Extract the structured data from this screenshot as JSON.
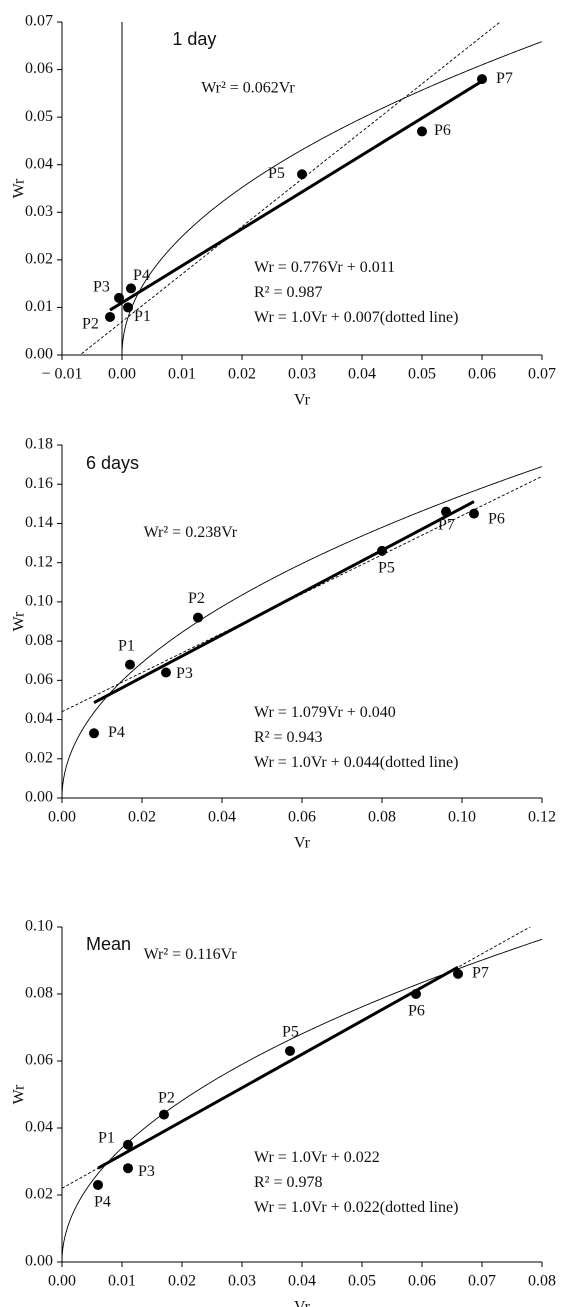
{
  "chart_data": [
    {
      "type": "scatter",
      "title": "1 day",
      "xlabel": "Vr",
      "ylabel": "Wr",
      "point_labels": [
        "P1",
        "P2",
        "P3",
        "P4",
        "P5",
        "P6",
        "P7"
      ],
      "x": [
        0.001,
        -0.002,
        -0.0005,
        0.0015,
        0.03,
        0.05,
        0.06
      ],
      "values": [
        0.01,
        0.008,
        0.012,
        0.014,
        0.038,
        0.047,
        0.058
      ],
      "xlim": [
        -0.01,
        0.07
      ],
      "ylim": [
        0,
        0.07
      ],
      "xticks": [
        {
          "value": -0.01,
          "label": "− 0.01"
        },
        {
          "value": 0,
          "label": "0.00"
        },
        0.01,
        0.02,
        0.03,
        0.04,
        0.05,
        0.06,
        0.07
      ],
      "yticks": [
        {
          "value": 0,
          "label": "0.00"
        },
        0.01,
        0.02,
        0.03,
        0.04,
        0.05,
        0.06,
        0.07
      ],
      "curve": {
        "coef": 0.062,
        "label": "Wr² = 0.062Vr"
      },
      "fit": {
        "slope": 0.776,
        "intercept": 0.011,
        "label": "Wr = 0.776Vr + 0.011"
      },
      "r2_label": "R² = 0.987",
      "reference": {
        "slope": 1.0,
        "intercept": 0.007,
        "label": "Wr = 1.0Vr + 0.007(dotted line)"
      }
    },
    {
      "type": "scatter",
      "title": "6 days",
      "xlabel": "Vr",
      "ylabel": "Wr",
      "point_labels": [
        "P1",
        "P2",
        "P3",
        "P4",
        "P5",
        "P6",
        "P7"
      ],
      "x": [
        0.017,
        0.034,
        0.026,
        0.008,
        0.08,
        0.103,
        0.096
      ],
      "values": [
        0.068,
        0.092,
        0.064,
        0.033,
        0.126,
        0.145,
        0.146
      ],
      "xlim": [
        0,
        0.12
      ],
      "ylim": [
        0,
        0.18
      ],
      "xticks": [
        {
          "value": 0,
          "label": "0.00"
        },
        0.02,
        0.04,
        0.06,
        0.08,
        {
          "value": 0.1,
          "label": "0.10"
        },
        0.12
      ],
      "yticks": [
        {
          "value": 0,
          "label": "0.00"
        },
        0.02,
        0.04,
        0.06,
        0.08,
        {
          "value": 0.1,
          "label": "0.10"
        },
        0.12,
        0.14,
        0.16,
        0.18
      ],
      "curve": {
        "coef": 0.238,
        "label": "Wr² = 0.238Vr"
      },
      "fit": {
        "slope": 1.079,
        "intercept": 0.04,
        "label": "Wr = 1.079Vr + 0.040"
      },
      "r2_label": "R² = 0.943",
      "reference": {
        "slope": 1.0,
        "intercept": 0.044,
        "label": "Wr = 1.0Vr + 0.044(dotted line)"
      }
    },
    {
      "type": "scatter",
      "title": "Mean",
      "xlabel": "Vr",
      "ylabel": "Wr",
      "point_labels": [
        "P1",
        "P2",
        "P3",
        "P4",
        "P5",
        "P6",
        "P7"
      ],
      "x": [
        0.011,
        0.017,
        0.011,
        0.006,
        0.038,
        0.059,
        0.066
      ],
      "values": [
        0.035,
        0.044,
        0.028,
        0.023,
        0.063,
        0.08,
        0.086
      ],
      "xlim": [
        0,
        0.08
      ],
      "ylim": [
        0,
        0.1
      ],
      "xticks": [
        {
          "value": 0,
          "label": "0.00"
        },
        0.01,
        0.02,
        0.03,
        0.04,
        0.05,
        0.06,
        0.07,
        0.08
      ],
      "yticks": [
        {
          "value": 0,
          "label": "0.00"
        },
        0.02,
        0.04,
        0.06,
        0.08,
        {
          "value": 0.1,
          "label": "0.10"
        }
      ],
      "curve": {
        "coef": 0.116,
        "label": "Wr² = 0.116Vr"
      },
      "fit": {
        "slope": 1.0,
        "intercept": 0.022,
        "label": "Wr = 1.0Vr + 0.022"
      },
      "r2_label": "R² = 0.978",
      "reference": {
        "slope": 1.0,
        "intercept": 0.022,
        "label": "Wr = 1.0Vr + 0.022(dotted line)"
      }
    }
  ]
}
